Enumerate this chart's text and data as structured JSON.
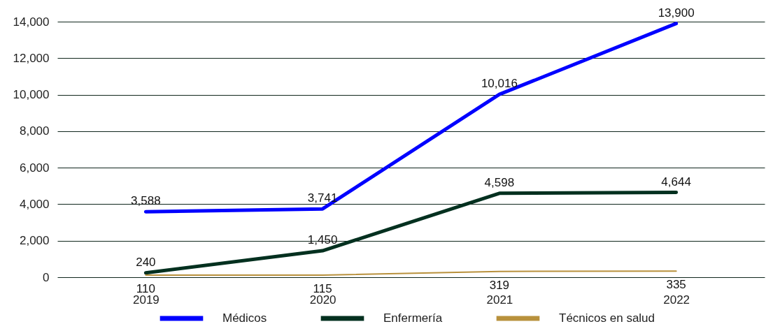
{
  "chart_data": {
    "type": "line",
    "categories": [
      "2019",
      "2020",
      "2021",
      "2022"
    ],
    "series": [
      {
        "name": "Médicos",
        "color": "#0000ff",
        "values": [
          3588,
          3741,
          10016,
          13900
        ],
        "value_labels": [
          "3,588",
          "3,741",
          "10,016",
          "13,900"
        ]
      },
      {
        "name": "Enfermería",
        "color": "#03301f",
        "values": [
          240,
          1450,
          4598,
          4644
        ],
        "value_labels": [
          "240",
          "1,450",
          "4,598",
          "4,644"
        ]
      },
      {
        "name": "Técnicos en salud",
        "color": "#b8913c",
        "values": [
          110,
          115,
          319,
          335
        ],
        "value_labels": [
          "110",
          "115",
          "319",
          "335"
        ]
      }
    ],
    "ylim": [
      0,
      14000
    ],
    "yticks": [
      0,
      {
        "value": 2000,
        "label": "2,000"
      },
      {
        "value": 4000,
        "label": "4,000"
      },
      {
        "value": 6000,
        "label": "6,000"
      },
      {
        "value": 8000,
        "label": "8,000"
      },
      {
        "value": 10000,
        "label": "10,000"
      },
      {
        "value": 12000,
        "label": "12,000"
      },
      {
        "value": 14000,
        "label": "14,000"
      }
    ],
    "grid": "y",
    "legend": "bottom"
  }
}
